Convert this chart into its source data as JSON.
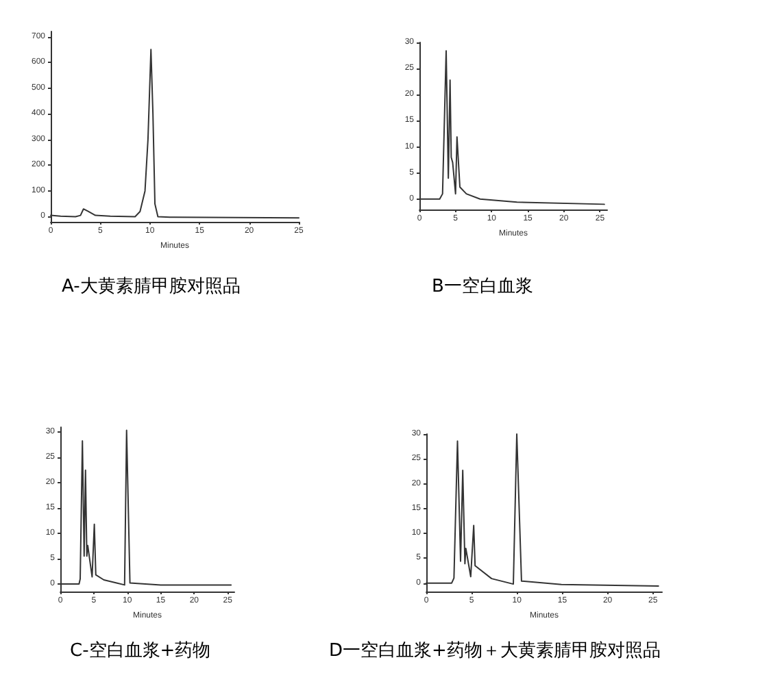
{
  "chart_data": [
    {
      "type": "line",
      "title": "A-大黄素腈甲胺对照品",
      "xlabel": "Minutes",
      "xlim": [
        0,
        25
      ],
      "ylim": [
        -20,
        720
      ],
      "xticks": [
        0,
        5,
        10,
        15,
        20,
        25
      ],
      "yticks": [
        0,
        100,
        200,
        300,
        400,
        500,
        600,
        700
      ],
      "grid": false,
      "marker": "none",
      "color": "#333333",
      "x": [
        0,
        1,
        2.5,
        3,
        3.3,
        3.8,
        4.5,
        6,
        8.5,
        9,
        9.5,
        9.8,
        10.1,
        10.3,
        10.5,
        10.8,
        12,
        25
      ],
      "values": [
        5,
        2,
        0,
        5,
        30,
        20,
        5,
        2,
        0,
        20,
        100,
        300,
        650,
        400,
        50,
        0,
        -2,
        -5
      ]
    },
    {
      "type": "line",
      "title": "B一空白血浆",
      "xlabel": "Minutes",
      "xlim": [
        0,
        26
      ],
      "ylim": [
        -2,
        30
      ],
      "xticks": [
        0,
        5,
        10,
        15,
        20,
        25
      ],
      "yticks": [
        0,
        5,
        10,
        15,
        20,
        25,
        30
      ],
      "grid": false,
      "marker": "none",
      "color": "#333333",
      "x": [
        0,
        2.8,
        3.2,
        3.7,
        4.0,
        4.24,
        4.4,
        4.6,
        5.0,
        5.2,
        5.6,
        6.5,
        8.4,
        13.5,
        25.6
      ],
      "values": [
        0,
        0,
        1,
        28.4,
        4,
        22.8,
        8,
        7,
        1,
        11.9,
        2.3,
        1,
        0,
        -0.6,
        -1
      ]
    },
    {
      "type": "line",
      "title": "C-空白血浆+药物",
      "xlabel": "Minutes",
      "xlim": [
        0,
        26
      ],
      "ylim": [
        -1.5,
        31
      ],
      "xticks": [
        0,
        5,
        10,
        15,
        20,
        25
      ],
      "yticks": [
        0,
        5,
        10,
        15,
        20,
        25,
        30
      ],
      "grid": false,
      "marker": "none",
      "color": "#333333",
      "x": [
        0,
        2.8,
        2.97,
        3.3,
        3.56,
        3.76,
        3.96,
        4.1,
        4.75,
        5.08,
        5.3,
        6.5,
        8.4,
        9.6,
        9.9,
        10.4,
        15,
        25.5
      ],
      "values": [
        0,
        0,
        1,
        28.3,
        5.5,
        22.5,
        5.5,
        7.6,
        1.4,
        11.8,
        1.8,
        0.8,
        0.2,
        -0.2,
        30.4,
        0.2,
        -0.2,
        -0.2
      ]
    },
    {
      "type": "line",
      "title": "D一空白血浆+药物＋大黄素腈甲胺对照品",
      "xlabel": "Minutes",
      "xlim": [
        0,
        26
      ],
      "ylim": [
        -1.7,
        30
      ],
      "xticks": [
        0,
        5,
        10,
        15,
        20,
        25
      ],
      "yticks": [
        0,
        5,
        10,
        15,
        20,
        25,
        30
      ],
      "grid": false,
      "marker": "none",
      "color": "#333333",
      "x": [
        0,
        2.8,
        3.05,
        3.44,
        3.78,
        4.02,
        4.26,
        4.36,
        4.9,
        5.23,
        5.38,
        7.2,
        9.6,
        9.98,
        10.5,
        14.9,
        25.6
      ],
      "values": [
        0,
        0,
        1,
        28.6,
        4.4,
        22.7,
        3.9,
        7,
        1.3,
        11.6,
        3.5,
        0.9,
        -0.2,
        30,
        0.4,
        -0.3,
        -0.6
      ]
    }
  ]
}
